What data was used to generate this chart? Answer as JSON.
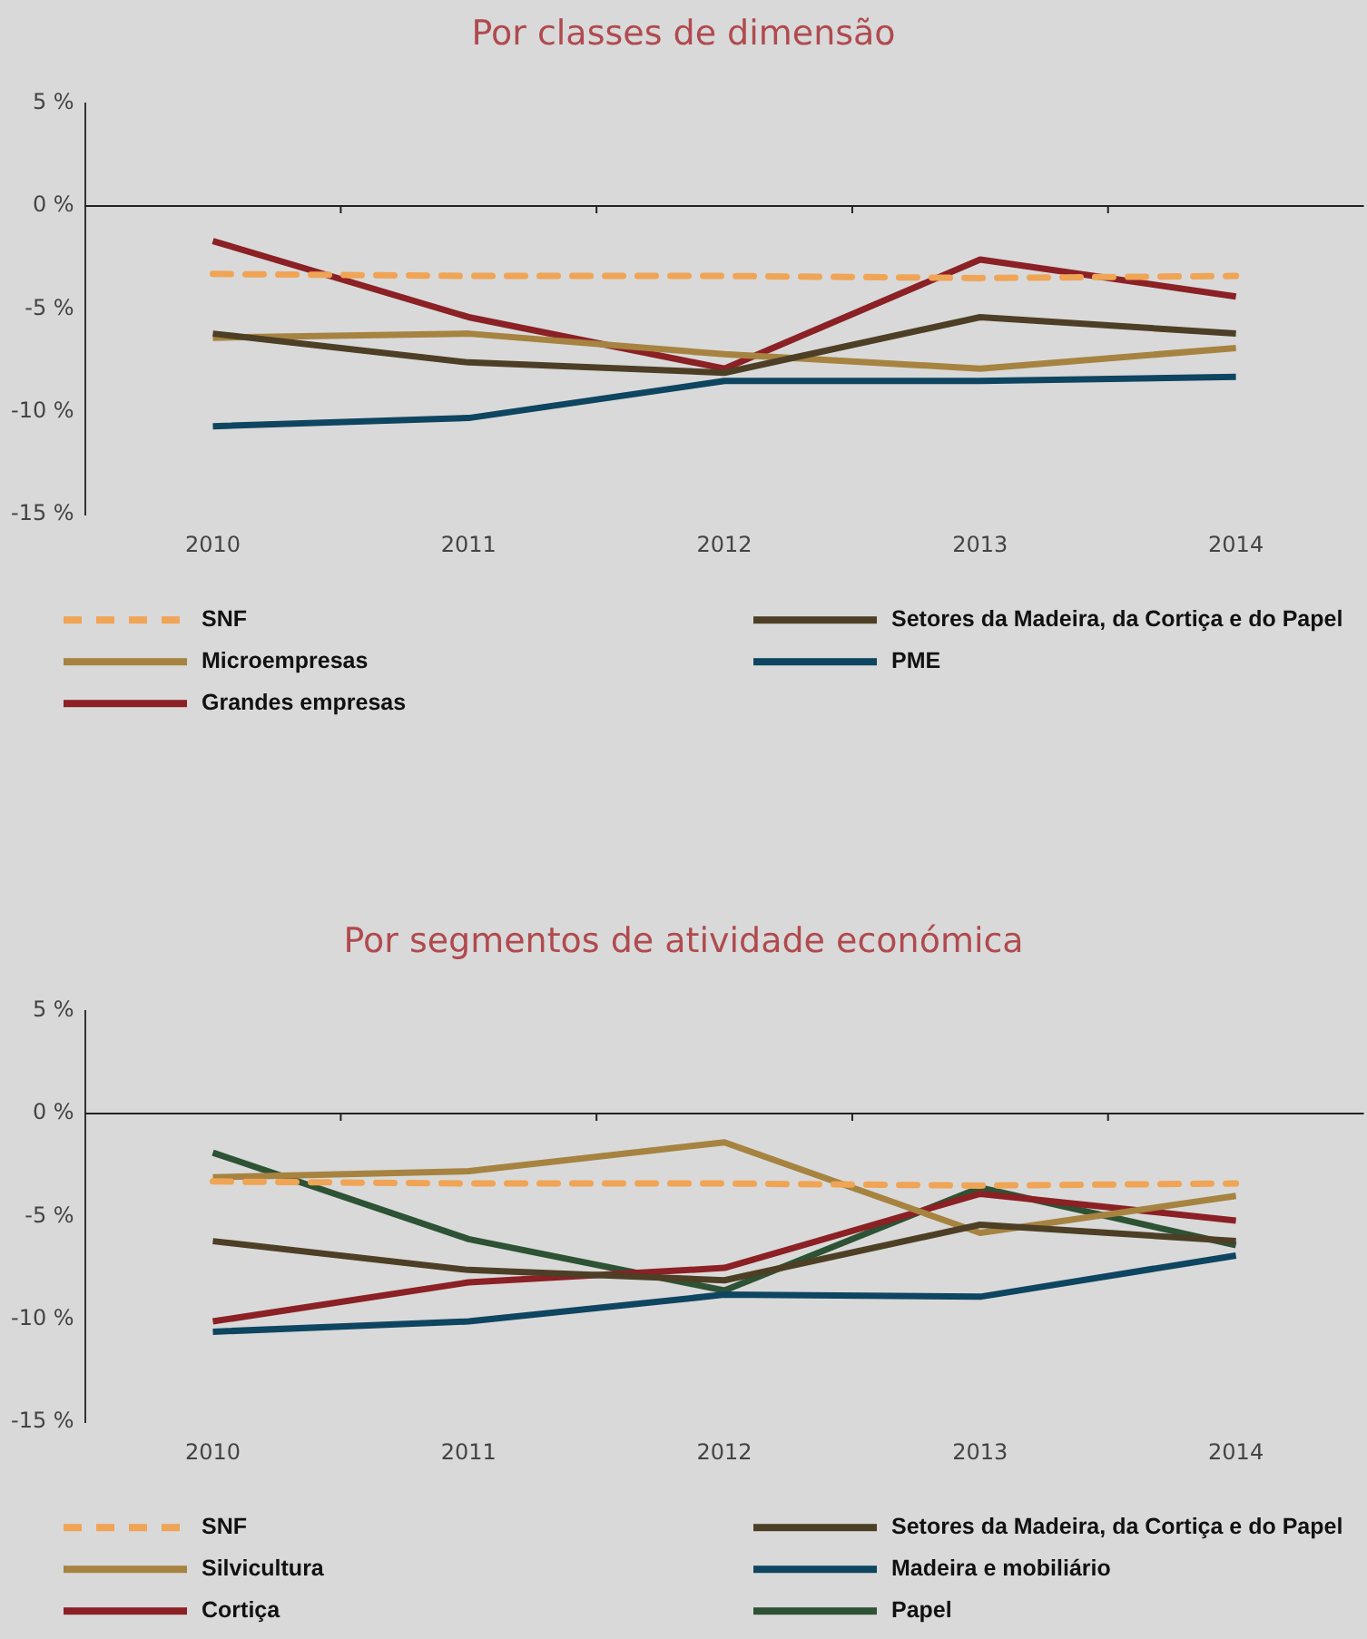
{
  "chart_data": [
    {
      "type": "line",
      "title": "Por classes de dimensão",
      "categories": [
        "2010",
        "2011",
        "2012",
        "2013",
        "2014"
      ],
      "series": [
        {
          "name": "SNF",
          "color": "#f0a455",
          "line_style": "dashed",
          "values": [
            -3.3,
            -3.4,
            -3.4,
            -3.5,
            -3.4
          ]
        },
        {
          "name": "Setores da Madeira, da Cortiça e do Papel",
          "color": "#4d3f26",
          "values": [
            -6.2,
            -7.6,
            -8.1,
            -5.4,
            -6.2
          ]
        },
        {
          "name": "Microempresas",
          "color": "#a68340",
          "values": [
            -6.4,
            -6.2,
            -7.2,
            -7.9,
            -6.9
          ]
        },
        {
          "name": "PME",
          "color": "#0e4560",
          "values": [
            -10.7,
            -10.3,
            -8.5,
            -8.5,
            -8.3
          ]
        },
        {
          "name": "Grandes empresas",
          "color": "#8b2025",
          "values": [
            -1.7,
            -5.4,
            -7.9,
            -2.6,
            -4.4
          ]
        }
      ],
      "ylim": [
        -15,
        5
      ],
      "yticks": [
        {
          "value": -15,
          "label": "-15 %"
        },
        {
          "value": -10,
          "label": "-10 %"
        },
        {
          "value": -5,
          "label": "-5 %"
        },
        {
          "value": 0,
          "label": "0 %"
        },
        {
          "value": 5,
          "label": "5 %"
        }
      ],
      "ref_lines": [
        {
          "axis": "y",
          "value": 0,
          "color": "#222222"
        }
      ],
      "grid": false,
      "legend": "bottom",
      "marker": "none",
      "line_style": "solid"
    },
    {
      "type": "line",
      "title": "Por segmentos de atividade económica",
      "categories": [
        "2010",
        "2011",
        "2012",
        "2013",
        "2014"
      ],
      "series": [
        {
          "name": "SNF",
          "color": "#f0a455",
          "line_style": "dashed",
          "values": [
            -3.3,
            -3.4,
            -3.4,
            -3.5,
            -3.4
          ]
        },
        {
          "name": "Setores da Madeira, da Cortiça e do Papel",
          "color": "#4d3f26",
          "values": [
            -6.2,
            -7.6,
            -8.1,
            -5.4,
            -6.2
          ]
        },
        {
          "name": "Silvicultura",
          "color": "#a68340",
          "values": [
            -3.1,
            -2.8,
            -1.4,
            -5.8,
            -4.0
          ]
        },
        {
          "name": "Madeira e mobiliário",
          "color": "#0e4560",
          "values": [
            -10.6,
            -10.1,
            -8.8,
            -8.9,
            -6.9
          ]
        },
        {
          "name": "Cortiça",
          "color": "#8b2025",
          "values": [
            -10.1,
            -8.2,
            -7.5,
            -3.9,
            -5.2
          ]
        },
        {
          "name": "Papel",
          "color": "#2d5234",
          "values": [
            -1.9,
            -6.1,
            -8.6,
            -3.6,
            -6.4
          ]
        }
      ],
      "ylim": [
        -15,
        5
      ],
      "yticks": [
        {
          "value": -15,
          "label": "-15 %"
        },
        {
          "value": -10,
          "label": "-10 %"
        },
        {
          "value": -5,
          "label": "-5 %"
        },
        {
          "value": 0,
          "label": "0 %"
        },
        {
          "value": 5,
          "label": "5 %"
        }
      ],
      "ref_lines": [
        {
          "axis": "y",
          "value": 0,
          "color": "#222222"
        }
      ],
      "grid": false,
      "legend": "bottom",
      "marker": "none",
      "line_style": "solid"
    }
  ]
}
